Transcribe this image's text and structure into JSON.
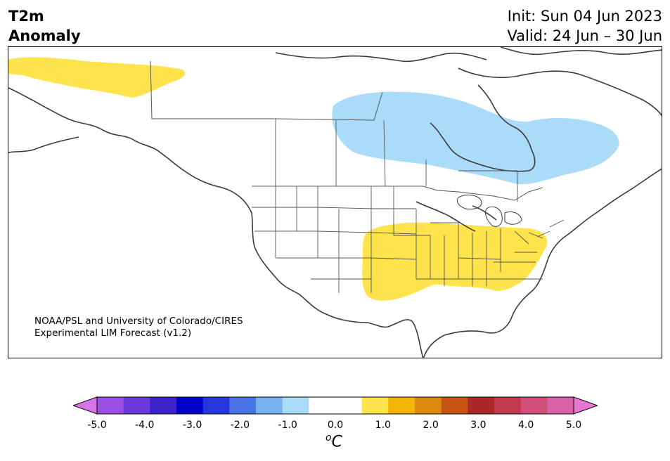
{
  "header": {
    "title_line1": "T2m",
    "title_line2": "Anomaly",
    "init": "Init: Sun 04 Jun 2023",
    "valid": "Valid: 24 Jun – 30 Jun"
  },
  "map": {
    "region": "North America",
    "anomaly_areas": [
      {
        "area": "Alaska",
        "class": "0.5 to 1.0",
        "color": "#ffe34d"
      },
      {
        "area": "Central Canada / Hudson Bay",
        "class": "-1.0 to -0.5",
        "color": "#aadcfa"
      },
      {
        "area": "Southern Plains to Mid-Atlantic US",
        "class": "0.5 to 1.0",
        "color": "#ffe34d"
      }
    ]
  },
  "credit": {
    "line1": "NOAA/PSL and University of Colorado/CIRES",
    "line2": "Experimental LIM Forecast (v1.2)"
  },
  "colorbar": {
    "colors": [
      "#d474e8",
      "#9a50e0",
      "#6a3ad8",
      "#3a22c8",
      "#0000cc",
      "#2438dc",
      "#4a74e6",
      "#78b2f2",
      "#aadcfa",
      "#ffffff",
      "#ffffff",
      "#ffe34d",
      "#f2b600",
      "#de8a10",
      "#c65414",
      "#aa2828",
      "#c23a50",
      "#d0507a",
      "#da62a8",
      "#e876d2"
    ],
    "ticks": [
      "-5.0",
      "-4.0",
      "-3.0",
      "-2.0",
      "-1.0",
      "0.0",
      "1.0",
      "2.0",
      "3.0",
      "4.0",
      "5.0"
    ],
    "unit_sup": "o",
    "unit": "C"
  }
}
